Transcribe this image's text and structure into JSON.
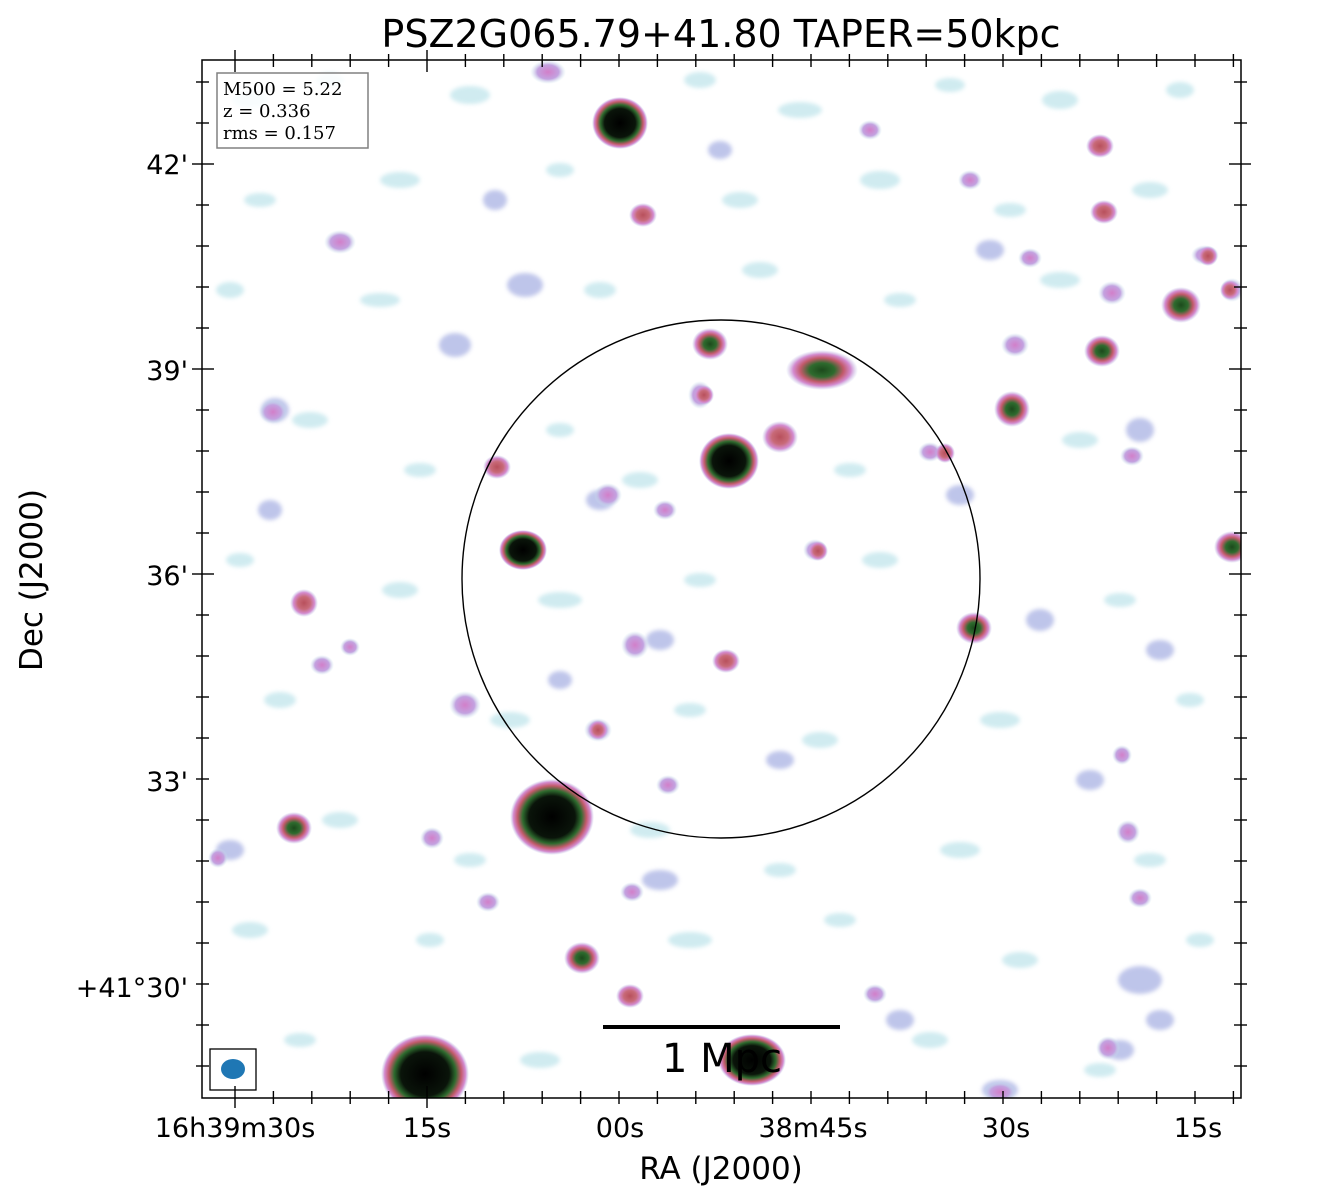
{
  "title": "PSZ2G065.79+41.80 TAPER=50kpc",
  "info_box": {
    "m500": "M500 = 5.22",
    "z": "z = 0.336",
    "rms": "rms = 0.157"
  },
  "axes": {
    "xlabel": "RA (J2000)",
    "ylabel": "Dec (J2000)",
    "x_ticks": [
      "16h39m30s",
      "15s",
      "00s",
      "38m45s",
      "30s",
      "15s"
    ],
    "y_ticks": [
      "42'",
      "39'",
      "36'",
      "33'",
      "+41°30'"
    ]
  },
  "scale_bar": {
    "label": "1 Mpc"
  },
  "colors": {
    "beam": "#1f77b4",
    "frame": "#000000",
    "faint_emission": "#c8e8ee",
    "low_emission": "#b8bfe8",
    "mid_emission": "#d48bd0",
    "high_emission": "#c25a6a",
    "peak_emission": "#2e6b2e",
    "saturated": "#000000"
  }
}
